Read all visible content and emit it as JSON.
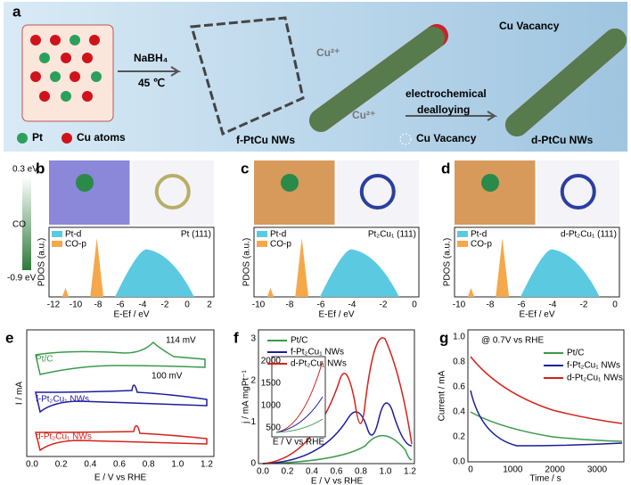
{
  "panel_a": {
    "label": "a",
    "reagent": "NaBH₄",
    "temperature": "45 ℃",
    "legend_pt": "Pt",
    "legend_cu": "Cu atoms",
    "fptcu": "f-PtCu  NWs",
    "cu_ion_1": "Cu²⁺",
    "cu_ion_2": "Cu²⁺",
    "step_1": "electrochemical",
    "step_2": "dealloying",
    "legend_vacancy": "Cu Vacancy",
    "vacancy_callout": "Cu Vacancy",
    "dptcu": "d-PtCu NWs"
  },
  "colorbar": {
    "top": "0.3 eV",
    "middle": "CO",
    "bottom": "-0.9 eV"
  },
  "pdos_panels": [
    {
      "label": "b",
      "title": "Pt (111)",
      "legend": [
        "Pt-d",
        "CO-p"
      ],
      "ylabel": "PDOS (a.u.)",
      "xlabel": "E-Ef / eV",
      "xticks": [
        "-12",
        "-10",
        "-8",
        "-6",
        "-4",
        "-2",
        "0",
        "2"
      ]
    },
    {
      "label": "c",
      "title": "Pt₂Cu₁ (111)",
      "legend": [
        "Pt-d",
        "CO-p"
      ],
      "ylabel": "PDOS (a.u.)",
      "xlabel": "E-Ef / eV",
      "xticks": [
        "-10",
        "-8",
        "-6",
        "-4",
        "-2",
        "0"
      ]
    },
    {
      "label": "d",
      "title": "d-Pt₂Cu₁ (111)",
      "legend": [
        "Pt-d",
        "CO-p"
      ],
      "ylabel": "PDOS (a.u.)",
      "xlabel": "E-Ef / eV",
      "xticks": [
        "-10",
        "-8",
        "-6",
        "-4",
        "-2",
        "0"
      ]
    }
  ],
  "panel_e": {
    "label": "e",
    "ylabel": "I / mA",
    "xlabel": "E / V vs RHE",
    "xticks": [
      "0.0",
      "0.2",
      "0.4",
      "0.6",
      "0.8",
      "1.0",
      "1.2"
    ],
    "curves": [
      "Pt/C",
      "f-Pt₂Cu₁ NWs",
      "d-Pt₂Cu₁ NWs"
    ],
    "shift_1": "114 mV",
    "shift_2": "100 mV"
  },
  "panel_f": {
    "label": "f",
    "ylabel": "j / mA mgPt⁻¹",
    "xlabel": "E / V vs RHE",
    "xticks": [
      "0.0",
      "0.2",
      "0.4",
      "0.6",
      "0.8",
      "1.0",
      "1.2"
    ],
    "yticks": [
      "0",
      "1",
      "2",
      "3"
    ],
    "legend": [
      "Pt/C",
      "f-Pt₂Cu₁ NWs",
      "d-Pt₂Cu₁ NWs"
    ],
    "inset_yticks": [
      "500",
      "1000",
      "1500",
      "2000"
    ],
    "inset_xlabel": "E / V vs RHE"
  },
  "panel_g": {
    "label": "g",
    "ylabel": "Current / mA",
    "xlabel": "Time / s",
    "note": "@ 0.7V vs RHE",
    "xticks": [
      "0",
      "1000",
      "2000",
      "3000"
    ],
    "yticks": [
      "0.0",
      "0.2",
      "0.4",
      "0.6",
      "0.8",
      "1.0"
    ],
    "legend": [
      "Pt/C",
      "f-Pt₂Cu₁ NWs",
      "d-Pt₂Cu₁ NWs"
    ]
  }
}
